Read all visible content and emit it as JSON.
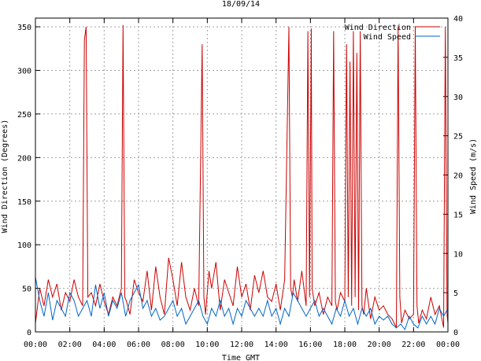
{
  "chart_data": {
    "type": "line",
    "title": "18/09/14",
    "xlabel": "Time GMT",
    "ylabel_left": "Wind Direction (Degrees)",
    "ylabel_right": "Wind Speed (m/s)",
    "x_ticks": [
      "00:00",
      "02:00",
      "04:00",
      "06:00",
      "08:00",
      "10:00",
      "12:00",
      "14:00",
      "16:00",
      "18:00",
      "20:00",
      "22:00",
      "00:00"
    ],
    "y_ticks_left": [
      "0",
      "50",
      "100",
      "150",
      "200",
      "250",
      "300",
      "350"
    ],
    "y_ticks_right": [
      "0",
      "5",
      "10",
      "15",
      "20",
      "25",
      "30",
      "35",
      "40"
    ],
    "xlim_hours": [
      0,
      24
    ],
    "ylim_left": [
      0,
      360
    ],
    "ylim_right": [
      0,
      40
    ],
    "grid": true,
    "legend_position": "top-right",
    "series": [
      {
        "name": "Wind Direction",
        "axis": "left",
        "color": "#cc0000",
        "x": [
          0,
          0.25,
          0.5,
          0.75,
          1,
          1.25,
          1.5,
          1.75,
          2,
          2.25,
          2.5,
          2.75,
          2.85,
          2.95,
          3.05,
          3.25,
          3.5,
          3.75,
          4,
          4.25,
          4.5,
          4.75,
          5,
          5.1,
          5.2,
          5.3,
          5.5,
          5.75,
          6,
          6.25,
          6.5,
          6.75,
          7,
          7.25,
          7.5,
          7.75,
          8,
          8.25,
          8.5,
          8.75,
          9,
          9.25,
          9.5,
          9.7,
          9.8,
          9.9,
          10.1,
          10.25,
          10.5,
          10.75,
          11,
          11.25,
          11.5,
          11.75,
          12,
          12.25,
          12.5,
          12.75,
          13,
          13.25,
          13.5,
          13.75,
          14,
          14.25,
          14.5,
          14.75,
          14.85,
          14.95,
          15.05,
          15.25,
          15.5,
          15.75,
          15.85,
          15.95,
          16.05,
          16.1,
          16.25,
          16.5,
          16.75,
          17,
          17.25,
          17.35,
          17.45,
          17.55,
          17.75,
          18,
          18.1,
          18.2,
          18.3,
          18.4,
          18.5,
          18.6,
          18.7,
          18.8,
          18.9,
          19,
          19.1,
          19.25,
          19.5,
          19.75,
          20,
          20.25,
          20.5,
          20.75,
          21,
          21.1,
          21.2,
          21.3,
          21.5,
          21.75,
          22,
          22.1,
          22.2,
          22.3,
          22.5,
          22.75,
          23,
          23.25,
          23.5,
          23.75,
          23.85,
          23.95,
          24
        ],
        "values": [
          10,
          50,
          30,
          60,
          40,
          55,
          25,
          45,
          35,
          60,
          40,
          30,
          335,
          350,
          40,
          45,
          30,
          55,
          35,
          20,
          40,
          30,
          50,
          352,
          40,
          35,
          20,
          60,
          45,
          35,
          70,
          25,
          75,
          40,
          20,
          85,
          60,
          30,
          80,
          40,
          25,
          50,
          30,
          330,
          40,
          20,
          70,
          50,
          80,
          25,
          60,
          45,
          30,
          75,
          40,
          55,
          25,
          65,
          45,
          70,
          40,
          35,
          55,
          25,
          60,
          350,
          50,
          40,
          60,
          35,
          70,
          30,
          345,
          40,
          348,
          50,
          30,
          45,
          20,
          40,
          30,
          345,
          35,
          25,
          45,
          35,
          330,
          40,
          310,
          30,
          345,
          40,
          320,
          25,
          345,
          30,
          20,
          50,
          15,
          40,
          25,
          30,
          20,
          15,
          5,
          350,
          40,
          10,
          25,
          15,
          20,
          350,
          30,
          10,
          25,
          15,
          40,
          20,
          30,
          5,
          350,
          20,
          10
        ]
      },
      {
        "name": "Wind Speed",
        "axis": "right",
        "color": "#0066cc",
        "x": [
          0,
          0.25,
          0.5,
          0.75,
          1,
          1.25,
          1.5,
          1.75,
          2,
          2.25,
          2.5,
          2.75,
          3,
          3.25,
          3.5,
          3.75,
          4,
          4.25,
          4.5,
          4.75,
          5,
          5.25,
          5.5,
          5.75,
          6,
          6.25,
          6.5,
          6.75,
          7,
          7.25,
          7.5,
          7.75,
          8,
          8.25,
          8.5,
          8.75,
          9,
          9.25,
          9.5,
          9.75,
          10,
          10.25,
          10.5,
          10.75,
          11,
          11.25,
          11.5,
          11.75,
          12,
          12.25,
          12.5,
          12.75,
          13,
          13.25,
          13.5,
          13.75,
          14,
          14.25,
          14.5,
          14.75,
          15,
          15.25,
          15.5,
          15.75,
          16,
          16.25,
          16.5,
          16.75,
          17,
          17.25,
          17.5,
          17.75,
          18,
          18.25,
          18.5,
          18.75,
          19,
          19.25,
          19.5,
          19.75,
          20,
          20.25,
          20.5,
          20.75,
          21,
          21.25,
          21.5,
          21.75,
          22,
          22.25,
          22.5,
          22.75,
          23,
          23.25,
          23.5,
          23.75,
          24
        ],
        "values": [
          7,
          4,
          2,
          5,
          1.5,
          4,
          3,
          2,
          5,
          4,
          2,
          3,
          4,
          2,
          6,
          3,
          5,
          2,
          4,
          3,
          5,
          2,
          4,
          5,
          6,
          3,
          4,
          2,
          3,
          1.5,
          2,
          3,
          4,
          2,
          3,
          1,
          2,
          3,
          4,
          2,
          1,
          3,
          2,
          4,
          2,
          3,
          1,
          3,
          2,
          4,
          3,
          2,
          3,
          2,
          4,
          2,
          3,
          1,
          3,
          2,
          5,
          4,
          3,
          2,
          3,
          4,
          2,
          3,
          2,
          1,
          3,
          2,
          4,
          2,
          3,
          1,
          3,
          2,
          3,
          1,
          2,
          1.5,
          2,
          1,
          0.5,
          1,
          0.3,
          2,
          1,
          0.5,
          2,
          1,
          2,
          1,
          3,
          2,
          3
        ]
      }
    ]
  }
}
